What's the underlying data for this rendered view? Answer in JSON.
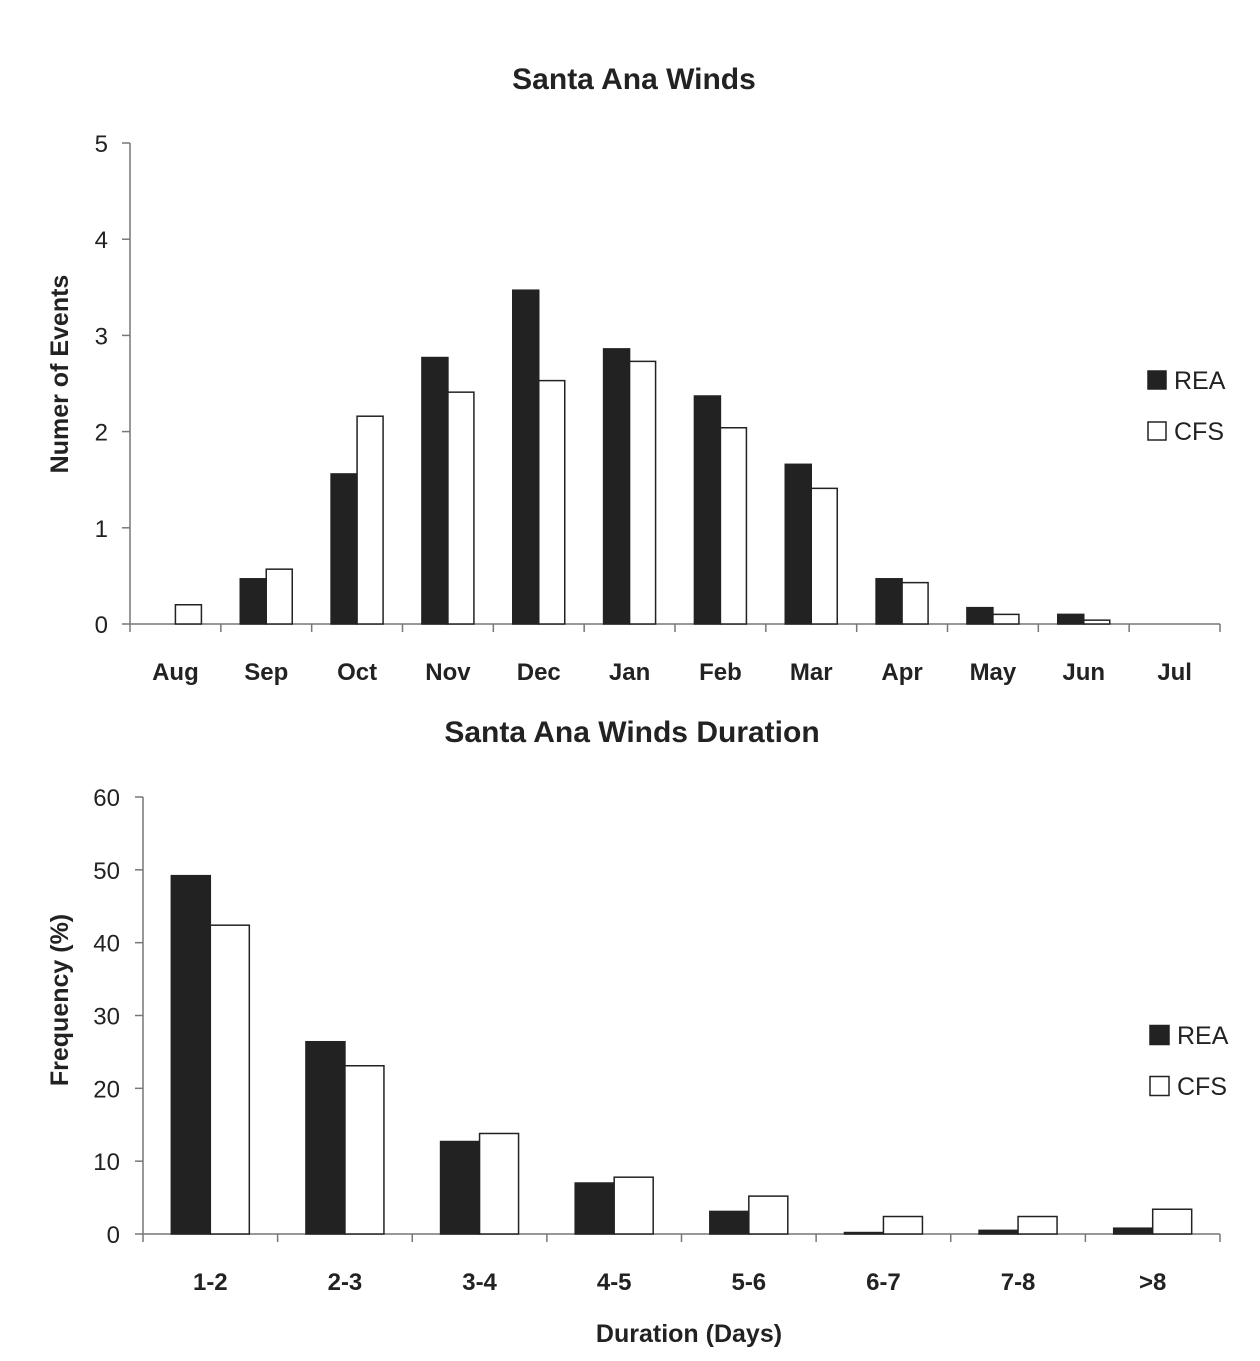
{
  "chart_data": [
    {
      "type": "bar",
      "title": "Santa Ana Winds",
      "xlabel": "",
      "ylabel": "Numer of Events",
      "ylim": [
        0,
        5
      ],
      "yticks": [
        "0",
        "1",
        "2",
        "3",
        "4",
        "5"
      ],
      "categories": [
        "Aug",
        "Sep",
        "Oct",
        "Nov",
        "Dec",
        "Jan",
        "Feb",
        "Mar",
        "Apr",
        "May",
        "Jun",
        "Jul"
      ],
      "legend_position": "right",
      "series": [
        {
          "name": "REA",
          "color": "#222222",
          "values": [
            0,
            0.47,
            1.56,
            2.77,
            3.47,
            2.86,
            2.37,
            1.66,
            0.47,
            0.17,
            0.1,
            0
          ]
        },
        {
          "name": "CFS",
          "color": "#ffffff",
          "values": [
            0.2,
            0.57,
            2.16,
            2.41,
            2.53,
            2.73,
            2.04,
            1.41,
            0.43,
            0.1,
            0.04,
            0
          ]
        }
      ]
    },
    {
      "type": "bar",
      "title": "Santa Ana Winds Duration",
      "xlabel": "Duration (Days)",
      "ylabel": "Frequency (%)",
      "ylim": [
        0,
        60
      ],
      "yticks": [
        "0",
        "10",
        "20",
        "30",
        "40",
        "50",
        "60"
      ],
      "categories": [
        "1-2",
        "2-3",
        "3-4",
        "4-5",
        "5-6",
        "6-7",
        "7-8",
        ">8"
      ],
      "legend_position": "right",
      "series": [
        {
          "name": "REA",
          "color": "#222222",
          "values": [
            49.2,
            26.4,
            12.7,
            7.0,
            3.1,
            0.2,
            0.5,
            0.8
          ]
        },
        {
          "name": "CFS",
          "color": "#ffffff",
          "values": [
            42.4,
            23.1,
            13.8,
            7.8,
            5.2,
            2.4,
            2.4,
            3.4
          ]
        }
      ]
    }
  ]
}
